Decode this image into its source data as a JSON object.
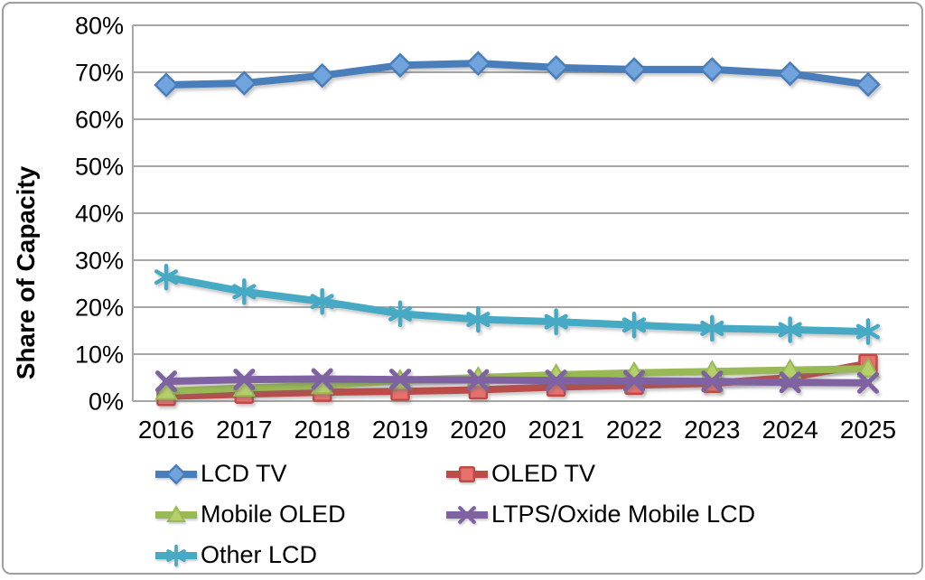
{
  "chart_data": {
    "type": "line",
    "title": "",
    "xlabel": "",
    "ylabel": "Share of Capacity",
    "x": [
      "2016",
      "2017",
      "2018",
      "2019",
      "2020",
      "2021",
      "2022",
      "2023",
      "2024",
      "2025"
    ],
    "ylim": [
      0,
      80
    ],
    "ytick_step": 10,
    "yticks": [
      "0%",
      "10%",
      "20%",
      "30%",
      "40%",
      "50%",
      "60%",
      "70%",
      "80%"
    ],
    "grid": true,
    "legend_position": "bottom-left",
    "series": [
      {
        "name": "LCD TV",
        "marker": "diamond",
        "color": "#4A7EBB",
        "marker_fill": "#71A3DC",
        "values": [
          67.3,
          67.7,
          69.3,
          71.5,
          71.9,
          71.0,
          70.6,
          70.6,
          69.7,
          67.4
        ]
      },
      {
        "name": "OLED TV",
        "marker": "square",
        "color": "#BE4B48",
        "marker_fill": "#E8706D",
        "values": [
          1.0,
          1.5,
          1.9,
          2.1,
          2.4,
          3.0,
          3.4,
          3.8,
          5.0,
          8.0
        ]
      },
      {
        "name": "Mobile OLED",
        "marker": "triangle",
        "color": "#98B954",
        "marker_fill": "#B5CF6B",
        "values": [
          2.1,
          2.8,
          3.3,
          4.4,
          5.0,
          5.6,
          6.0,
          6.3,
          6.6,
          6.9
        ]
      },
      {
        "name": "LTPS/Oxide Mobile LCD",
        "marker": "x",
        "color": "#7E62A1",
        "marker_fill": "#7E62A1",
        "values": [
          4.2,
          4.6,
          4.7,
          4.6,
          4.5,
          4.4,
          4.3,
          4.2,
          4.0,
          3.9
        ]
      },
      {
        "name": "Other LCD",
        "marker": "asterisk",
        "color": "#46AAC5",
        "marker_fill": "#46AAC5",
        "values": [
          26.4,
          23.3,
          21.2,
          18.6,
          17.4,
          16.9,
          16.2,
          15.5,
          15.2,
          14.8
        ]
      }
    ],
    "colors": {
      "gridline": "#A6A6A6",
      "axis_text": "#000000"
    }
  }
}
